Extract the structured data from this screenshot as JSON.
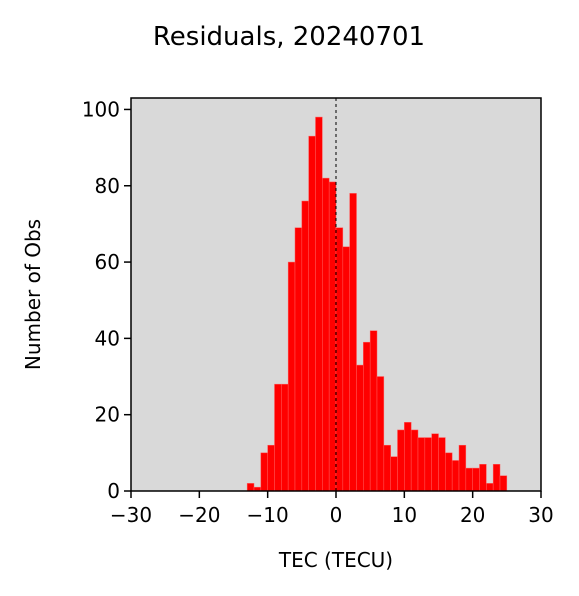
{
  "chart_data": {
    "type": "bar",
    "title": "Residuals, 20240701",
    "xlabel": "TEC (TECU)",
    "ylabel": "Number of Obs",
    "xlim": [
      -30,
      30
    ],
    "ylim": [
      0,
      103
    ],
    "xticks": [
      -30,
      -20,
      -10,
      0,
      10,
      20,
      30
    ],
    "xtick_labels": [
      "−30",
      "−20",
      "−10",
      "0",
      "10",
      "20",
      "30"
    ],
    "yticks": [
      0,
      20,
      40,
      60,
      80,
      100
    ],
    "ytick_labels": [
      "0",
      "20",
      "40",
      "60",
      "80",
      "100"
    ],
    "bin_width": 1,
    "bin_edges_start": -13,
    "counts": [
      2,
      1,
      10,
      12,
      28,
      28,
      60,
      69,
      76,
      93,
      98,
      82,
      81,
      69,
      64,
      78,
      33,
      39,
      42,
      30,
      12,
      9,
      16,
      18,
      16,
      14,
      14,
      15,
      14,
      10,
      8,
      12,
      6,
      6,
      7,
      2,
      7,
      4
    ],
    "reference_line_x": 0,
    "grid": false,
    "legend": "none",
    "colors": {
      "bars": "#ff0000",
      "axes_background": "#d9d9d9",
      "reference_line": "#000000"
    }
  }
}
